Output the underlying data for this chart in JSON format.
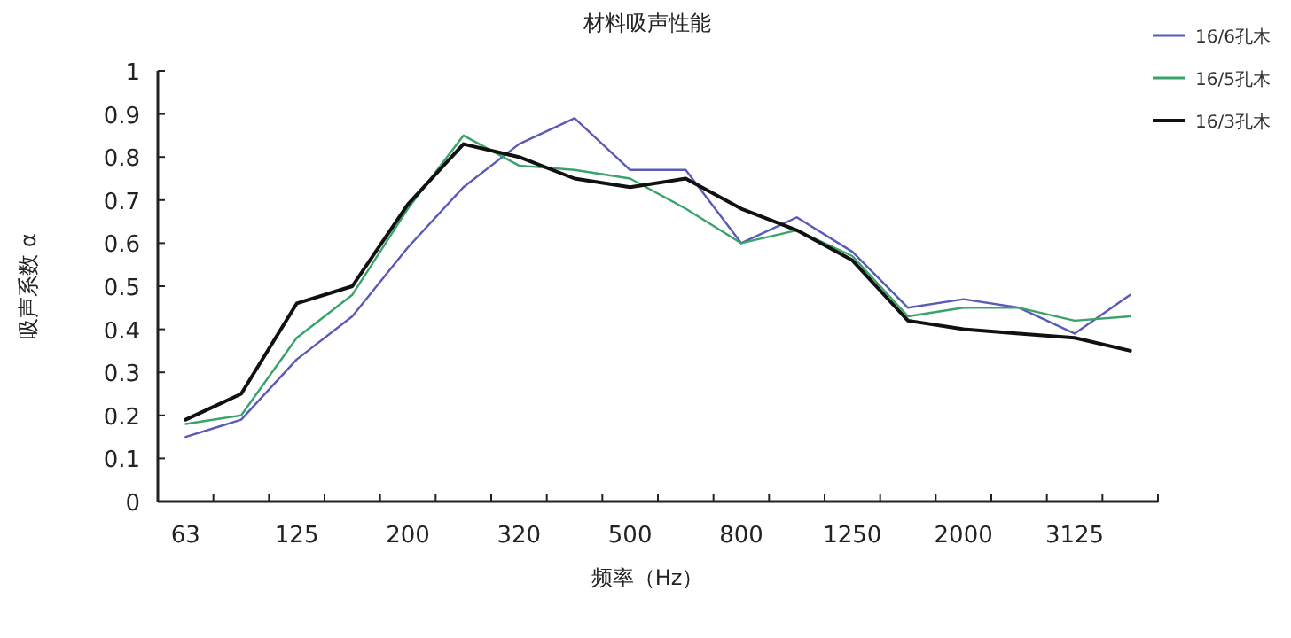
{
  "chart_data": {
    "type": "line",
    "title": "材料吸声性能",
    "xlabel": "频率（Hz）",
    "ylabel": "吸声系数 α",
    "categories": [
      "63",
      null,
      "125",
      null,
      "200",
      null,
      "320",
      null,
      "500",
      null,
      "800",
      null,
      "1250",
      null,
      "2000",
      null,
      "3125",
      null
    ],
    "ylim": [
      0,
      1
    ],
    "yticks": [
      0,
      0.1,
      0.2,
      0.3,
      0.4,
      0.5,
      0.6,
      0.7,
      0.8,
      0.9,
      1
    ],
    "legend": "top right",
    "series": [
      {
        "name": "16/6孔木",
        "color": "#5a5ab8",
        "values": [
          0.15,
          0.19,
          0.33,
          0.43,
          0.59,
          0.73,
          0.83,
          0.89,
          0.77,
          0.77,
          0.6,
          0.66,
          0.58,
          0.45,
          0.47,
          0.45,
          0.39,
          0.48
        ]
      },
      {
        "name": "16/5孔木",
        "color": "#3aa36a",
        "values": [
          0.18,
          0.2,
          0.38,
          0.48,
          0.68,
          0.85,
          0.78,
          0.77,
          0.75,
          0.68,
          0.6,
          0.63,
          0.57,
          0.43,
          0.45,
          0.45,
          0.42,
          0.43
        ]
      },
      {
        "name": "16/3孔木",
        "color": "#111111",
        "values": [
          0.19,
          0.25,
          0.46,
          0.5,
          0.69,
          0.83,
          0.8,
          0.75,
          0.73,
          0.75,
          0.68,
          0.63,
          0.56,
          0.42,
          0.4,
          0.39,
          0.38,
          0.35
        ]
      }
    ]
  }
}
